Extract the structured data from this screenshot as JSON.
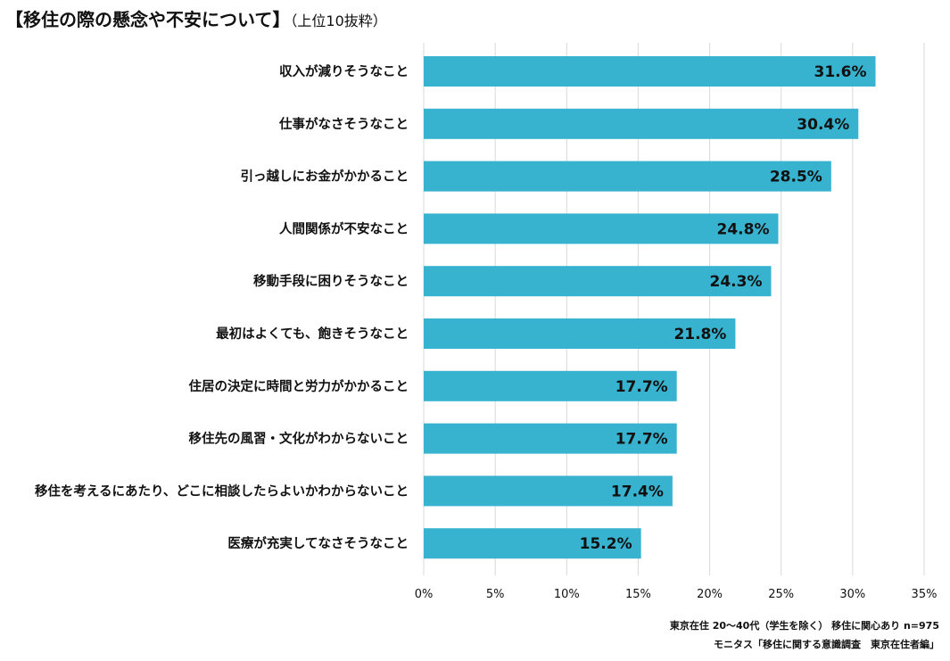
{
  "title": {
    "main": "【移住の際の懸念や不安について】",
    "sub": "（上位10抜粋）"
  },
  "chart_data": {
    "type": "bar",
    "orientation": "horizontal",
    "title": "【移住の際の懸念や不安について】（上位10抜粋）",
    "categories": [
      "収入が減りそうなこと",
      "仕事がなさそうなこと",
      "引っ越しにお金がかかること",
      "人間関係が不安なこと",
      "移動手段に困りそうなこと",
      "最初はよくても、飽きそうなこと",
      "住居の決定に時間と労力がかかること",
      "移住先の風習・文化がわからないこと",
      "移住を考えるにあたり、どこに相談したらよいかわからないこと",
      "医療が充実してなさそうなこと"
    ],
    "values": [
      31.6,
      30.4,
      28.5,
      24.8,
      24.3,
      21.8,
      17.7,
      17.7,
      17.4,
      15.2
    ],
    "value_labels": [
      "31.6%",
      "30.4%",
      "28.5%",
      "24.8%",
      "24.3%",
      "21.8%",
      "17.7%",
      "17.7%",
      "17.4%",
      "15.2%"
    ],
    "xticks": [
      0,
      5,
      10,
      15,
      20,
      25,
      30,
      35
    ],
    "xtick_labels": [
      "0%",
      "5%",
      "10%",
      "15%",
      "20%",
      "25%",
      "30%",
      "35%"
    ],
    "xlim": [
      0,
      35
    ],
    "grid": true,
    "bar_color": "#37b2cf",
    "grid_color": "#d9d9d9"
  },
  "footnotes": {
    "sample": "東京在住 20〜40代（学生を除く） 移住に関心あり n=975",
    "source": "モニタス「移住に関する意識調査　東京在住者編」"
  }
}
